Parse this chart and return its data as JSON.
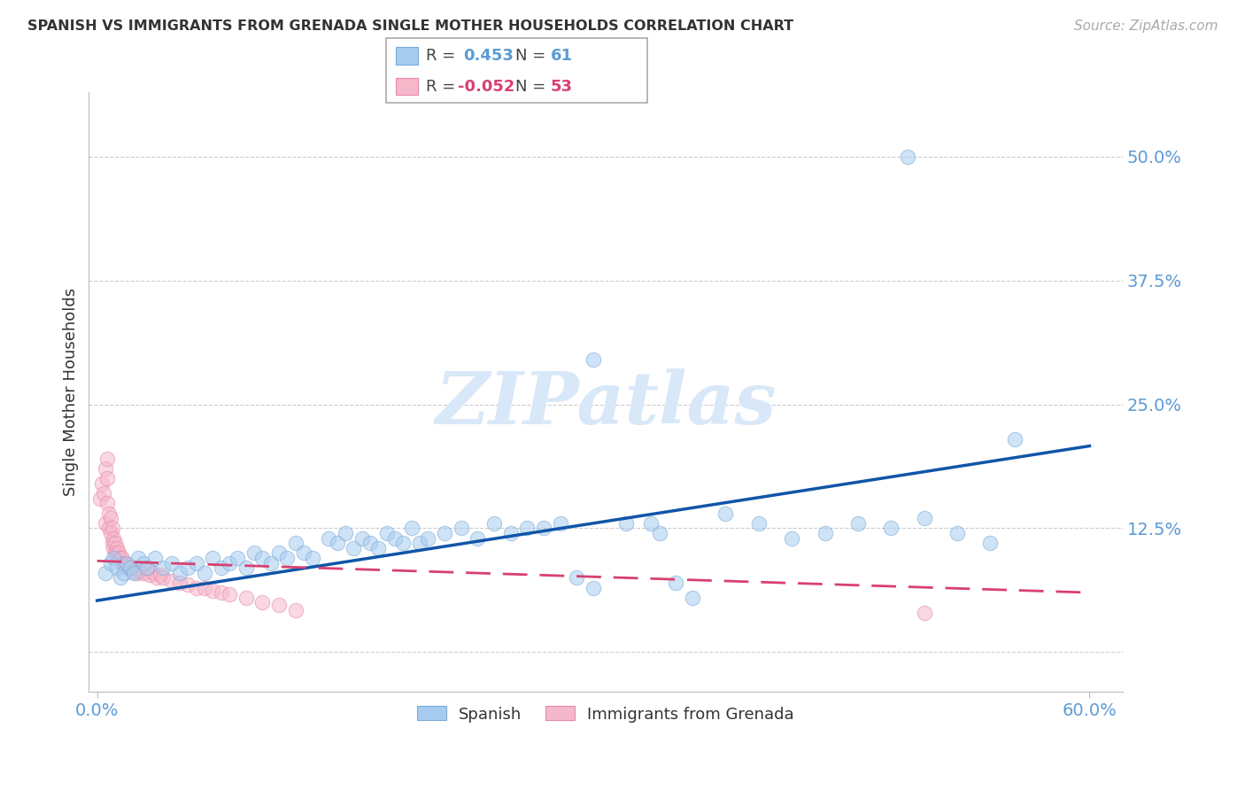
{
  "title": "SPANISH VS IMMIGRANTS FROM GRENADA SINGLE MOTHER HOUSEHOLDS CORRELATION CHART",
  "source": "Source: ZipAtlas.com",
  "ylabel": "Single Mother Households",
  "xlim": [
    -0.005,
    0.62
  ],
  "ylim": [
    -0.04,
    0.565
  ],
  "yticks": [
    0.0,
    0.125,
    0.25,
    0.375,
    0.5
  ],
  "yticklabels": [
    "",
    "12.5%",
    "25.0%",
    "37.5%",
    "50.0%"
  ],
  "xticks": [
    0.0,
    0.6
  ],
  "xticklabels": [
    "0.0%",
    "60.0%"
  ],
  "blue_color": "#A8CCF0",
  "blue_edge_color": "#7AAAD8",
  "pink_color": "#F5B8CB",
  "pink_edge_color": "#E888A8",
  "trendline_blue_color": "#1055A8",
  "trendline_pink_color": "#D84070",
  "watermark_color": "#D8E8F8",
  "spanish_x": [
    0.005,
    0.008,
    0.01,
    0.012,
    0.014,
    0.016,
    0.018,
    0.02,
    0.022,
    0.025,
    0.028,
    0.03,
    0.035,
    0.04,
    0.045,
    0.05,
    0.055,
    0.06,
    0.065,
    0.07,
    0.075,
    0.08,
    0.085,
    0.09,
    0.095,
    0.1,
    0.105,
    0.11,
    0.115,
    0.12,
    0.125,
    0.13,
    0.14,
    0.145,
    0.15,
    0.155,
    0.16,
    0.165,
    0.17,
    0.175,
    0.18,
    0.185,
    0.19,
    0.195,
    0.2,
    0.21,
    0.22,
    0.23,
    0.24,
    0.25,
    0.26,
    0.27,
    0.28,
    0.29,
    0.3,
    0.32,
    0.34,
    0.35,
    0.36,
    0.38,
    0.4,
    0.42,
    0.44,
    0.46,
    0.48,
    0.49,
    0.5,
    0.52,
    0.54,
    0.555,
    0.335,
    0.3
  ],
  "spanish_y": [
    0.08,
    0.09,
    0.095,
    0.085,
    0.075,
    0.08,
    0.09,
    0.085,
    0.08,
    0.095,
    0.09,
    0.085,
    0.095,
    0.085,
    0.09,
    0.08,
    0.085,
    0.09,
    0.08,
    0.095,
    0.085,
    0.09,
    0.095,
    0.085,
    0.1,
    0.095,
    0.09,
    0.1,
    0.095,
    0.11,
    0.1,
    0.095,
    0.115,
    0.11,
    0.12,
    0.105,
    0.115,
    0.11,
    0.105,
    0.12,
    0.115,
    0.11,
    0.125,
    0.11,
    0.115,
    0.12,
    0.125,
    0.115,
    0.13,
    0.12,
    0.125,
    0.125,
    0.13,
    0.075,
    0.065,
    0.13,
    0.12,
    0.07,
    0.055,
    0.14,
    0.13,
    0.115,
    0.12,
    0.13,
    0.125,
    0.5,
    0.135,
    0.12,
    0.11,
    0.215,
    0.13,
    0.295
  ],
  "grenada_x": [
    0.002,
    0.003,
    0.004,
    0.005,
    0.005,
    0.006,
    0.006,
    0.007,
    0.007,
    0.008,
    0.008,
    0.009,
    0.009,
    0.01,
    0.01,
    0.011,
    0.011,
    0.012,
    0.012,
    0.013,
    0.013,
    0.014,
    0.015,
    0.015,
    0.016,
    0.017,
    0.018,
    0.019,
    0.02,
    0.022,
    0.024,
    0.026,
    0.028,
    0.03,
    0.032,
    0.034,
    0.036,
    0.038,
    0.04,
    0.045,
    0.05,
    0.055,
    0.06,
    0.065,
    0.07,
    0.075,
    0.08,
    0.09,
    0.1,
    0.11,
    0.12,
    0.5,
    0.006
  ],
  "grenada_y": [
    0.155,
    0.17,
    0.16,
    0.13,
    0.185,
    0.15,
    0.175,
    0.125,
    0.14,
    0.12,
    0.135,
    0.11,
    0.125,
    0.105,
    0.115,
    0.1,
    0.11,
    0.1,
    0.105,
    0.095,
    0.1,
    0.095,
    0.09,
    0.095,
    0.09,
    0.088,
    0.085,
    0.088,
    0.085,
    0.082,
    0.08,
    0.082,
    0.08,
    0.085,
    0.078,
    0.08,
    0.075,
    0.078,
    0.075,
    0.072,
    0.07,
    0.068,
    0.065,
    0.065,
    0.062,
    0.06,
    0.058,
    0.055,
    0.05,
    0.048,
    0.042,
    0.04,
    0.195
  ],
  "blue_trendline_x": [
    0.0,
    0.6
  ],
  "blue_trendline_y": [
    0.052,
    0.208
  ],
  "pink_trendline_x": [
    0.0,
    0.6
  ],
  "pink_trendline_y": [
    0.092,
    0.06
  ]
}
